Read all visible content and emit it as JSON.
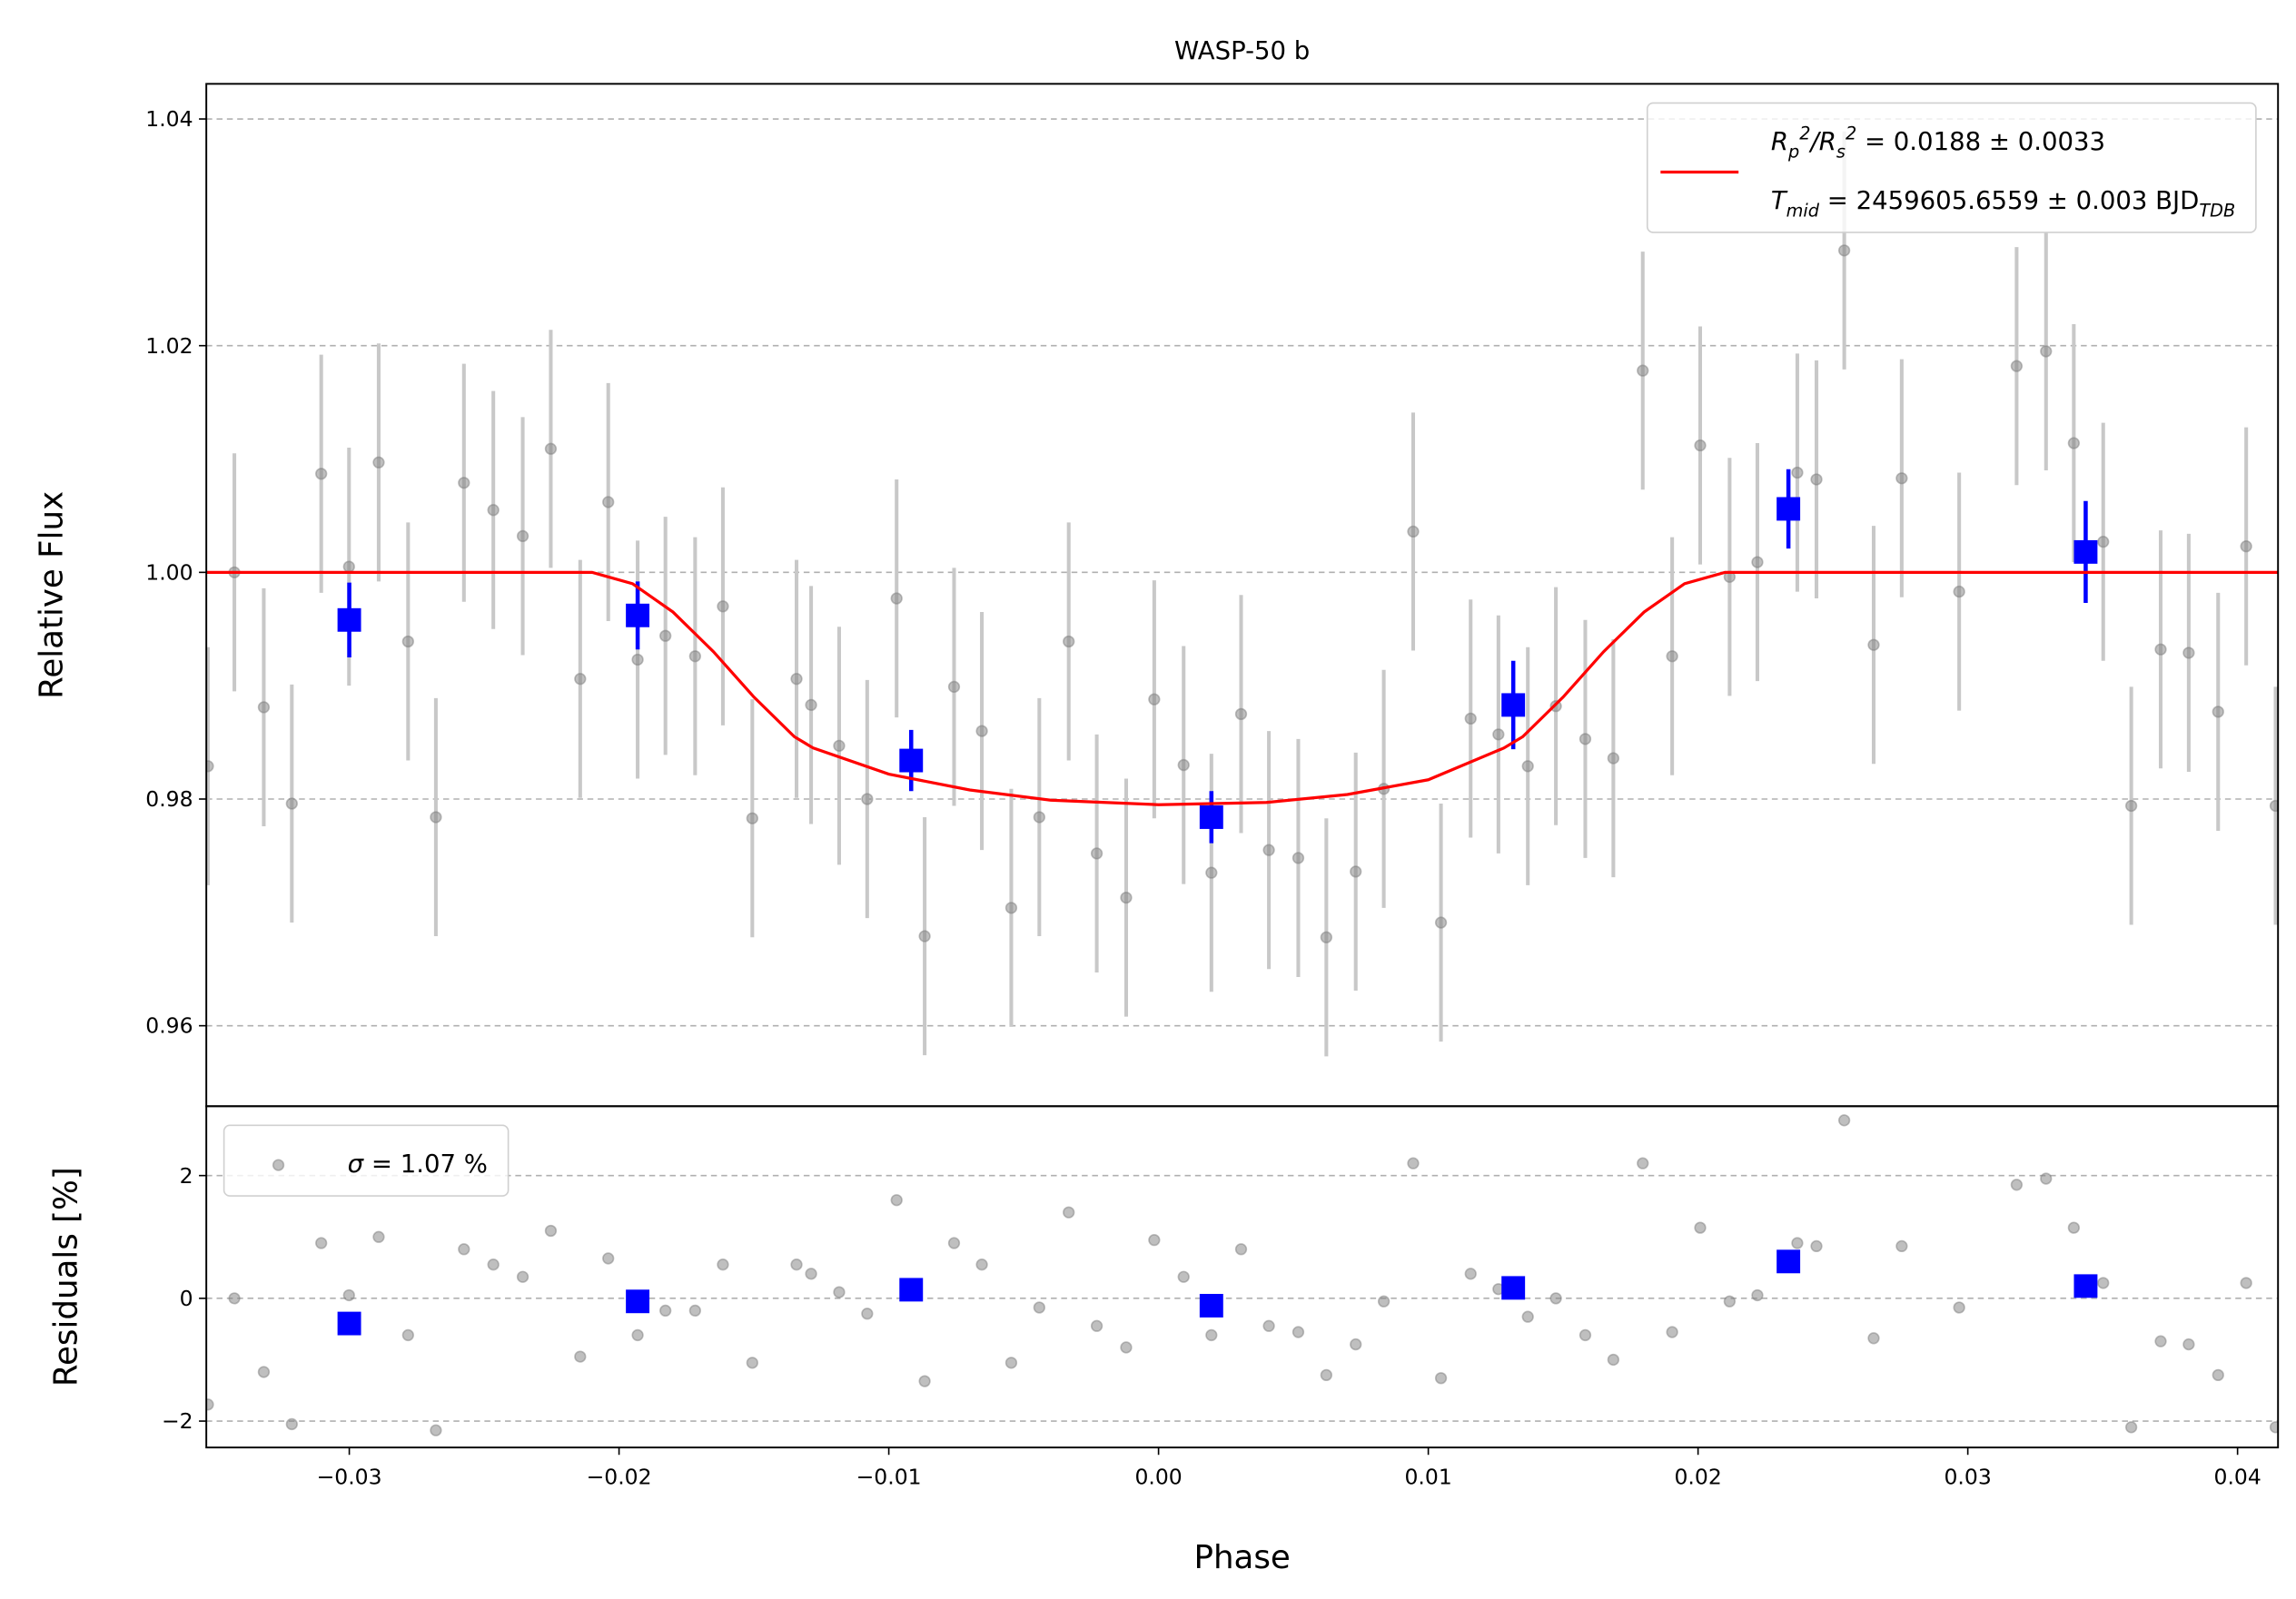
{
  "chart_data": [
    {
      "type": "scatter",
      "title": "WASP-50 b",
      "ylabel": "Relative Flux",
      "xlim": [
        -0.0353,
        0.0415
      ],
      "ylim": [
        0.9529,
        1.0431
      ],
      "yticks": [
        0.96,
        0.98,
        {
          "value": 1.0,
          "label": "1.00"
        },
        1.02,
        1.04
      ],
      "grid": true,
      "legend": "upper right",
      "series": [
        {
          "style": "markers",
          "marker": "circle",
          "color": "#808080",
          "yerr": 0.0105,
          "x": [
            -0.03524,
            -0.03426,
            -0.03317,
            -0.03213,
            -0.03104,
            -0.03001,
            -0.02891,
            -0.02782,
            -0.02679,
            -0.02575,
            -0.02466,
            -0.02357,
            -0.02253,
            -0.02144,
            -0.0204,
            -0.01931,
            -0.01828,
            -0.01718,
            -0.01615,
            -0.01506,
            -0.01342,
            -0.01288,
            -0.01184,
            -0.0108,
            -0.00971,
            -0.00867,
            -0.00758,
            -0.00655,
            -0.00546,
            -0.00442,
            -0.00333,
            -0.00229,
            -0.0012,
            -0.00016,
            0.00093,
            0.00196,
            0.00306,
            0.00409,
            0.00518,
            0.00622,
            0.00731,
            0.00835,
            0.00944,
            0.01047,
            0.01157,
            0.0126,
            0.01369,
            0.01473,
            0.01582,
            0.01686,
            0.01795,
            0.01904,
            0.02008,
            0.02117,
            0.0222,
            0.02368,
            0.02439,
            0.02542,
            0.02651,
            0.02755,
            0.02968,
            0.03181,
            0.0329,
            0.03393,
            0.03502,
            0.03606,
            0.03715,
            0.03819,
            0.03928,
            0.04032,
            0.04141
          ],
          "values": [
            0.9829,
            1.0,
            0.9881,
            0.9796,
            1.0087,
            1.0005,
            1.0097,
            0.9939,
            0.9784,
            1.0079,
            1.0055,
            1.0032,
            1.0109,
            0.9906,
            1.0062,
            0.9923,
            0.9944,
            0.9926,
            0.997,
            0.9783,
            0.9906,
            0.9883,
            0.9847,
            0.98,
            0.9977,
            0.9679,
            0.9899,
            0.986,
            0.9704,
            0.9784,
            0.9939,
            0.9752,
            0.9713,
            0.9888,
            0.983,
            0.9735,
            0.9875,
            0.9755,
            0.9748,
            0.9678,
            0.9736,
            0.9809,
            1.0036,
            0.9691,
            0.9871,
            0.9857,
            0.9829,
            0.9882,
            0.9853,
            0.9836,
            1.0178,
            0.9926,
            1.0112,
            0.9996,
            1.0009,
            1.0088,
            1.0082,
            1.0284,
            0.9936,
            1.0083,
            0.9983,
            1.0182,
            1.0195,
            1.0114,
            1.0027,
            0.9794,
            0.9932,
            0.9929,
            0.9877,
            1.0023,
            0.9794
          ]
        },
        {
          "style": "markers",
          "marker": "square",
          "color": "#0000ff",
          "x": [
            -0.03,
            -0.01931,
            -0.00917,
            0.00196,
            0.01315,
            0.02335,
            0.03437
          ],
          "values": [
            0.9958,
            0.9962,
            0.9834,
            0.9784,
            0.9883,
            1.0056,
            1.0018
          ],
          "yerr": [
            0.0033,
            0.003,
            0.0027,
            0.0023,
            0.0039,
            0.0035,
            0.0045
          ]
        },
        {
          "style": "line",
          "color": "#ff0000",
          "name": "$R_p^2/R_s^2$ = 0.0188 ± 0.0033\n$T_{mid}$ = 2459605.6559 ± 0.003 BJD$_{TDB}$",
          "x": [
            -0.0353,
            -0.021,
            -0.0195,
            -0.018,
            -0.0165,
            -0.015,
            -0.0135,
            -0.0128,
            -0.01,
            -0.007,
            -0.004,
            0,
            0.004,
            0.007,
            0.01,
            0.0128,
            0.0135,
            0.015,
            0.0165,
            0.018,
            0.0195,
            0.021,
            0.0415
          ],
          "values": [
            1.0,
            1.0,
            0.999,
            0.9965,
            0.993,
            0.989,
            0.9855,
            0.9845,
            0.9822,
            0.9808,
            0.9799,
            0.9795,
            0.9797,
            0.9804,
            0.9817,
            0.9845,
            0.9855,
            0.989,
            0.993,
            0.9965,
            0.999,
            1.0,
            1.0
          ]
        }
      ]
    },
    {
      "type": "scatter",
      "xlabel": "Phase",
      "ylabel": "Residuals [%]",
      "xlim": [
        -0.0353,
        0.0415
      ],
      "ylim": [
        -2.43,
        3.13
      ],
      "xticks": [
        {
          "value": -0.03,
          "label": "−0.03"
        },
        {
          "value": -0.02,
          "label": "−0.02"
        },
        {
          "value": -0.01,
          "label": "−0.01"
        },
        {
          "value": 0,
          "label": "0.00"
        },
        0.01,
        0.02,
        0.03,
        0.04
      ],
      "yticks": [
        {
          "value": -2,
          "label": "−2"
        },
        0,
        2
      ],
      "grid": true,
      "legend": "upper left",
      "series": [
        {
          "style": "markers",
          "marker": "circle",
          "color": "#808080",
          "name": "$σ$ = 1.07 %",
          "x": [
            -0.03524,
            -0.03426,
            -0.03317,
            -0.03213,
            -0.03104,
            -0.03001,
            -0.02891,
            -0.02782,
            -0.02679,
            -0.02575,
            -0.02466,
            -0.02357,
            -0.02253,
            -0.02144,
            -0.0204,
            -0.01931,
            -0.01828,
            -0.01718,
            -0.01615,
            -0.01506,
            -0.01342,
            -0.01288,
            -0.01184,
            -0.0108,
            -0.00971,
            -0.00867,
            -0.00758,
            -0.00655,
            -0.00546,
            -0.00442,
            -0.00333,
            -0.00229,
            -0.0012,
            -0.00016,
            0.00093,
            0.00196,
            0.00306,
            0.00409,
            0.00518,
            0.00622,
            0.00731,
            0.00835,
            0.00944,
            0.01047,
            0.01157,
            0.0126,
            0.01369,
            0.01473,
            0.01582,
            0.01686,
            0.01795,
            0.01904,
            0.02008,
            0.02117,
            0.0222,
            0.02368,
            0.02439,
            0.02542,
            0.02651,
            0.02755,
            0.02968,
            0.03181,
            0.0329,
            0.03393,
            0.03502,
            0.03606,
            0.03715,
            0.03819,
            0.03928,
            0.04032,
            0.04141
          ],
          "values": [
            -1.73,
            0,
            -1.2,
            -2.05,
            0.9,
            0.05,
            1.0,
            -0.6,
            -2.15,
            0.8,
            0.55,
            0.35,
            1.1,
            -0.95,
            0.65,
            -0.6,
            -0.2,
            -0.2,
            0.55,
            -1.05,
            0.55,
            0.4,
            0.1,
            -0.25,
            1.6,
            -1.35,
            0.9,
            0.55,
            -1.05,
            -0.15,
            1.4,
            -0.45,
            -0.8,
            0.95,
            0.35,
            -0.6,
            0.8,
            -0.45,
            -0.55,
            -1.25,
            -0.75,
            -0.05,
            2.2,
            -1.3,
            0.4,
            0.15,
            -0.3,
            0,
            -0.6,
            -1.0,
            2.2,
            -0.55,
            1.15,
            -0.05,
            0.05,
            0.9,
            0.85,
            2.9,
            -0.65,
            0.85,
            -0.15,
            1.85,
            1.95,
            1.15,
            0.25,
            -2.1,
            -0.7,
            -0.75,
            -1.25,
            0.25,
            -2.1
          ]
        },
        {
          "style": "markers",
          "marker": "square",
          "color": "#0000ff",
          "x": [
            -0.03,
            -0.01931,
            -0.00917,
            0.00196,
            0.01315,
            0.02335,
            0.03437
          ],
          "values": [
            -0.41,
            -0.05,
            0.14,
            -0.12,
            0.17,
            0.6,
            0.2
          ]
        }
      ]
    }
  ]
}
